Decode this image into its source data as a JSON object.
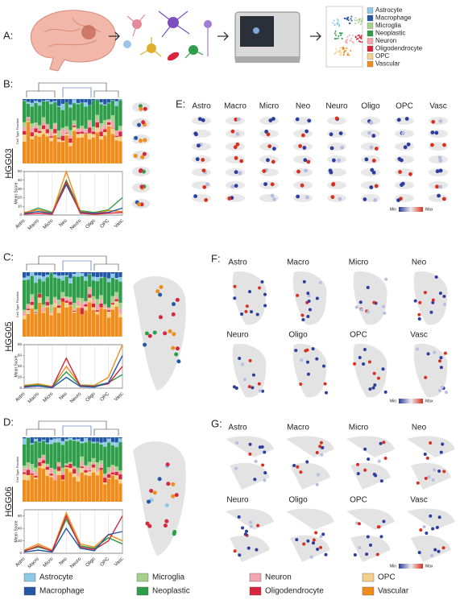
{
  "panel_a": {
    "label": "A:",
    "legend": [
      {
        "name": "Astrocyte",
        "color": "#8ecae6"
      },
      {
        "name": "Macrophage",
        "color": "#2457a6"
      },
      {
        "name": "Microglia",
        "color": "#a8d08d"
      },
      {
        "name": "Neoplastic",
        "color": "#2e9e4a"
      },
      {
        "name": "Neuron",
        "color": "#f4a6b0"
      },
      {
        "name": "Oligodendrocyte",
        "color": "#d7263d"
      },
      {
        "name": "OPC",
        "color": "#f5d08c"
      },
      {
        "name": "Vascular",
        "color": "#f08c1c"
      }
    ]
  },
  "panels": [
    {
      "label": "B:",
      "sample": "HGG03",
      "bar_y_label": "Cell Type Fraction",
      "chart": {
        "type": "line",
        "y_label": "Mean Score",
        "categories": [
          "Astro",
          "Macro",
          "Micro",
          "Neo",
          "Neuro",
          "Oligo",
          "OPC",
          "Vasc"
        ],
        "ylim": [
          0,
          50
        ],
        "yticks": [
          0,
          10,
          20,
          30,
          40,
          50
        ],
        "series": [
          {
            "color": "#2e9e4a",
            "values": [
              2,
              8,
              3,
              40,
              5,
              3,
              6,
              20
            ]
          },
          {
            "color": "#f08c1c",
            "values": [
              3,
              6,
              2,
              50,
              4,
              2,
              5,
              4
            ]
          },
          {
            "color": "#2457a6",
            "values": [
              2,
              4,
              2,
              35,
              3,
              2,
              3,
              8
            ]
          },
          {
            "color": "#d7263d",
            "values": [
              1,
              2,
              1,
              38,
              2,
              1,
              2,
              3
            ]
          }
        ]
      },
      "spatial": {
        "label": "E:",
        "layout": "row",
        "headers": [
          "Astro",
          "Macro",
          "Micro",
          "Neo",
          "Neuro",
          "Oligo",
          "OPC",
          "Vasc"
        ],
        "min": "Min",
        "max": "Max"
      }
    },
    {
      "label": "C:",
      "sample": "HGG05",
      "bar_y_label": "Cell Type Fraction",
      "chart": {
        "type": "line",
        "y_label": "Mean Score",
        "categories": [
          "Astro",
          "Macro",
          "Micro",
          "Neo",
          "Neuro",
          "Oligo",
          "OPC",
          "Vasc"
        ],
        "ylim": [
          0,
          80
        ],
        "yticks": [
          0,
          20,
          40,
          60,
          80
        ],
        "series": [
          {
            "color": "#f08c1c",
            "values": [
              5,
              8,
              3,
              40,
              6,
              5,
              20,
              80
            ]
          },
          {
            "color": "#2e9e4a",
            "values": [
              4,
              6,
              2,
              30,
              5,
              4,
              10,
              25
            ]
          },
          {
            "color": "#d7263d",
            "values": [
              3,
              4,
              2,
              55,
              4,
              3,
              8,
              40
            ]
          },
          {
            "color": "#2457a6",
            "values": [
              2,
              4,
              1,
              20,
              3,
              2,
              10,
              60
            ]
          }
        ]
      },
      "spatial": {
        "label": "F:",
        "layout": "grid",
        "headers": [
          "Astro",
          "Macro",
          "Micro",
          "Neo",
          "Neuro",
          "Oligo",
          "OPC",
          "Vasc"
        ],
        "min": "Min",
        "max": "Max"
      }
    },
    {
      "label": "D:",
      "sample": "HGG06",
      "bar_y_label": "Cell Type Fraction",
      "chart": {
        "type": "line",
        "y_label": "Mean Score",
        "categories": [
          "Astro",
          "Macro",
          "Micro",
          "Neo",
          "Neuro",
          "Oligo",
          "OPC",
          "Vasc"
        ],
        "ylim": [
          0,
          70
        ],
        "yticks": [
          0,
          20,
          40,
          60
        ],
        "series": [
          {
            "color": "#f08c1c",
            "values": [
              5,
              15,
              5,
              65,
              15,
              10,
              30,
              20
            ]
          },
          {
            "color": "#2e9e4a",
            "values": [
              4,
              10,
              4,
              55,
              12,
              8,
              25,
              15
            ]
          },
          {
            "color": "#d7263d",
            "values": [
              3,
              12,
              3,
              60,
              10,
              6,
              20,
              60
            ]
          },
          {
            "color": "#2457a6",
            "values": [
              2,
              5,
              2,
              40,
              8,
              4,
              30,
              35
            ]
          }
        ]
      },
      "spatial": {
        "label": "G:",
        "layout": "grid",
        "headers": [
          "Astro",
          "Macro",
          "Micro",
          "Neo",
          "Neuro",
          "Oligo",
          "OPC",
          "Vasc"
        ],
        "min": "Min",
        "max": "Max"
      }
    }
  ],
  "legend": {
    "items": [
      {
        "name": "Astrocyte",
        "color": "#8ecae6"
      },
      {
        "name": "Macrophage",
        "color": "#2457a6"
      },
      {
        "name": "Microglia",
        "color": "#a8d08d"
      },
      {
        "name": "Neoplastic",
        "color": "#2e9e4a"
      },
      {
        "name": "Neuron",
        "color": "#f4a6b0"
      },
      {
        "name": "Oligodendrocyte",
        "color": "#d7263d"
      },
      {
        "name": "OPC",
        "color": "#f5d08c"
      },
      {
        "name": "Vascular",
        "color": "#f08c1c"
      }
    ]
  }
}
